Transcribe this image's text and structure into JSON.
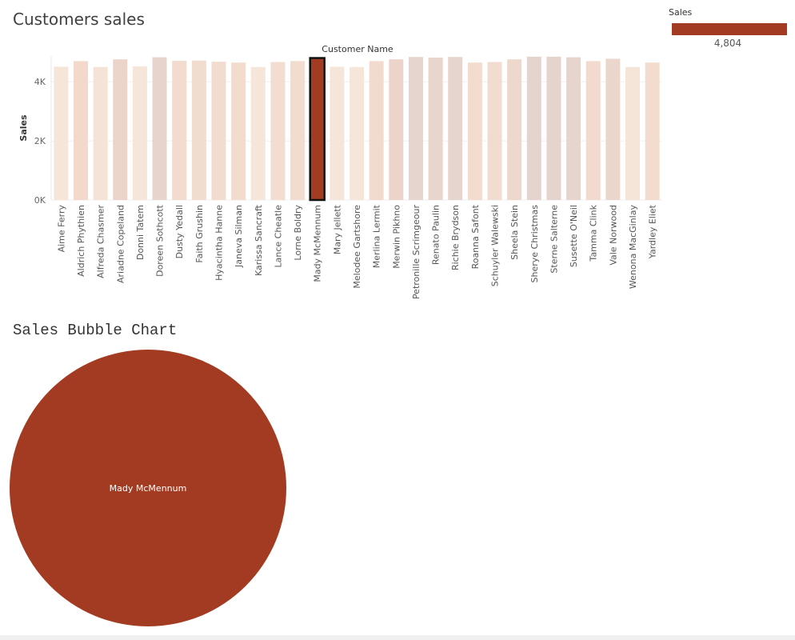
{
  "sheet1": {
    "title": "Customers sales"
  },
  "sheet2": {
    "title": "Sales Bubble Chart"
  },
  "legend": {
    "title": "Sales",
    "value": "4,804",
    "color": "#a23b21"
  },
  "chart_data": [
    {
      "type": "bar",
      "title": "Customers sales",
      "xlabel": "Customer Name",
      "ylabel": "Sales",
      "ylim": [
        0,
        4900
      ],
      "yticks": [
        {
          "value": 0,
          "label": "0K"
        },
        {
          "value": 2000,
          "label": "2K"
        },
        {
          "value": 4000,
          "label": "4K"
        }
      ],
      "grid": true,
      "highlight": "Mady McMennum",
      "highlight_color": "#a23b21",
      "categories": [
        "Aime Ferry",
        "Aldrich Phythien",
        "Alfreda Chasmer",
        "Ariadne Copeland",
        "Donni Tatem",
        "Doreen Sothcott",
        "Dusty Yedall",
        "Faith Grushin",
        "Hyacintha Hanne",
        "Janeva Silman",
        "Karissa Sancraft",
        "Lance Cheatle",
        "Lorne Boldry",
        "Mady McMennum",
        "Mary Jellett",
        "Melodee Gartshore",
        "Merlina Lermit",
        "Merwin Pikhno",
        "Petronille Scrimgeour",
        "Renato Paulin",
        "Richie Brydson",
        "Roanna Safont",
        "Schuyler Walewski",
        "Sheela Stein",
        "Sherye Christmas",
        "Sterne Salterne",
        "Susette O'Neil",
        "Tamma Clink",
        "Vale Norwood",
        "Wenona MacGinlay",
        "Yardley Eliet"
      ],
      "values": [
        4510,
        4700,
        4500,
        4760,
        4520,
        4830,
        4710,
        4720,
        4680,
        4650,
        4500,
        4670,
        4700,
        4804,
        4510,
        4500,
        4700,
        4760,
        4840,
        4820,
        4840,
        4650,
        4670,
        4760,
        4850,
        4850,
        4830,
        4700,
        4780,
        4500,
        4650
      ],
      "colors": [
        "#f6e5d9",
        "#f2d9cc",
        "#f5e3d7",
        "#ecd4cb",
        "#f6e5d9",
        "#e6d4cd",
        "#f3dccf",
        "#f2dccf",
        "#f2dcd0",
        "#f3dccd",
        "#f6e5d9",
        "#f3ddd0",
        "#f2dbcf",
        "#a23b21",
        "#f6e5d9",
        "#f6e6da",
        "#f2dace",
        "#ecd4ca",
        "#e6d5ce",
        "#e8d5cd",
        "#e6d5ce",
        "#f3dccd",
        "#f2dccf",
        "#eed7cc",
        "#e5d3cd",
        "#e5d3cd",
        "#e6d4cd",
        "#f2dace",
        "#ead6cd",
        "#f5e5d9",
        "#f3dccd"
      ]
    },
    {
      "type": "scatter",
      "title": "Sales Bubble Chart",
      "points": [
        {
          "label": "Mady McMennum",
          "value": 4804,
          "color": "#a23b21"
        }
      ]
    }
  ]
}
